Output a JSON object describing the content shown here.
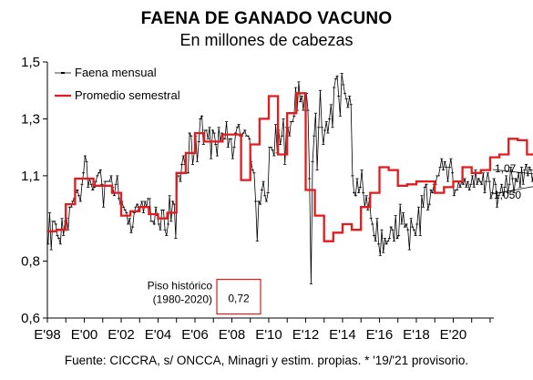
{
  "title": "FAENA DE GANADO VACUNO",
  "subtitle": "En millones de cabezas",
  "source": "Fuente: CICCRA, s/ ONCCA, Minagri y estim. propias. * '19/'21 provisorio.",
  "colors": {
    "monthly": "#000000",
    "semester": "#e41a1c",
    "axis": "#000000",
    "annotation_box": "#e41a1c"
  },
  "chart_data": {
    "type": "line",
    "title": "FAENA DE GANADO VACUNO",
    "subtitle": "En millones de cabezas",
    "xlabel": "",
    "ylabel": "",
    "xlim": [
      1998.0,
      2022.2
    ],
    "ylim": [
      0.6,
      1.5
    ],
    "y_ticks": [
      {
        "value": 0.6,
        "label": "0,6"
      },
      {
        "value": 0.8,
        "label": "0,8"
      },
      {
        "value": 1.1,
        "label": "1,1"
      },
      {
        "value": 1.3,
        "label": "1,3"
      },
      {
        "value": 1.5,
        "label": "1,5"
      }
    ],
    "x_ticks": [
      {
        "value": 1998,
        "label": "E'98"
      },
      {
        "value": 2000,
        "label": "E'00"
      },
      {
        "value": 2002,
        "label": "E'02"
      },
      {
        "value": 2004,
        "label": "E'04"
      },
      {
        "value": 2006,
        "label": "E'06"
      },
      {
        "value": 2008,
        "label": "E'08"
      },
      {
        "value": 2010,
        "label": "E'10"
      },
      {
        "value": 2012,
        "label": "E'12"
      },
      {
        "value": 2014,
        "label": "E'14"
      },
      {
        "value": 2016,
        "label": "E'16"
      },
      {
        "value": 2018,
        "label": "E'18"
      },
      {
        "value": 2020,
        "label": "E'20"
      }
    ],
    "grid": false,
    "legend": {
      "placement": "top-left",
      "entries": [
        {
          "label": "Faena mensual",
          "series": "monthly"
        },
        {
          "label": "Promedio semestral",
          "series": "semester"
        }
      ]
    },
    "series": [
      {
        "name": "Faena mensual",
        "key": "monthly",
        "start_year": 1998,
        "frequency": "monthly",
        "values": [
          0.86,
          0.97,
          0.84,
          0.94,
          0.94,
          0.93,
          0.89,
          0.88,
          0.86,
          0.95,
          0.89,
          0.94,
          0.95,
          0.91,
          0.99,
          0.99,
          1.01,
          1.02,
          1.04,
          1.05,
          1.03,
          1.01,
          1.07,
          1.11,
          1.17,
          1.15,
          1.06,
          1.09,
          1.07,
          1.05,
          1.06,
          1.08,
          1.1,
          1.11,
          1.12,
          1.07,
          0.99,
          1.08,
          1.08,
          1.08,
          1.08,
          1.1,
          1.06,
          1.03,
          1.07,
          1.1,
          1.02,
          1.0,
          1.01,
          0.99,
          0.98,
          0.97,
          0.93,
          0.95,
          0.9,
          0.92,
          0.97,
          0.99,
          1.0,
          0.98,
          0.99,
          1.01,
          0.97,
          1.01,
          0.99,
          1.02,
          1.02,
          0.94,
          0.94,
          0.93,
          0.99,
          0.96,
          0.93,
          0.91,
          0.98,
          0.98,
          0.91,
          0.89,
          0.93,
          1.03,
          0.94,
          1.01,
          1.0,
          0.88,
          1.1,
          1.1,
          1.08,
          1.14,
          1.17,
          1.14,
          1.11,
          1.11,
          1.25,
          1.24,
          1.14,
          1.18,
          1.24,
          1.15,
          1.22,
          1.3,
          1.31,
          1.21,
          1.26,
          1.26,
          1.23,
          1.27,
          1.16,
          1.26,
          1.25,
          1.21,
          1.17,
          1.27,
          1.22,
          1.25,
          1.23,
          1.23,
          1.29,
          1.2,
          1.23,
          1.23,
          1.16,
          1.2,
          1.25,
          1.27,
          1.28,
          1.24,
          1.24,
          1.25,
          1.26,
          1.24,
          1.24,
          1.23,
          1.15,
          1.12,
          1.11,
          1.01,
          0.87,
          1.01,
          1.0,
          1.05,
          1.08,
          1.03,
          1.01,
          1.04,
          1.2,
          1.2,
          1.19,
          1.17,
          1.28,
          1.18,
          1.26,
          1.21,
          1.24,
          1.3,
          1.14,
          1.27,
          1.27,
          1.24,
          1.29,
          1.29,
          1.31,
          1.41,
          1.33,
          1.43,
          1.36,
          1.38,
          1.33,
          1.39,
          1.39,
          1.33,
          1.09,
          0.72,
          1.15,
          1.24,
          1.32,
          1.12,
          1.27,
          1.4,
          1.27,
          1.21,
          1.26,
          1.29,
          1.25,
          1.3,
          1.35,
          1.27,
          1.41,
          1.44,
          1.45,
          1.38,
          1.31,
          1.46,
          1.42,
          1.39,
          1.37,
          1.34,
          1.38,
          1.35,
          1.1,
          1.04,
          1.03,
          1.09,
          1.04,
          1.06,
          1.12,
          1.04,
          0.99,
          1.03,
          0.98,
          1.02,
          0.95,
          0.93,
          0.89,
          0.87,
          0.95,
          0.86,
          0.82,
          0.91,
          0.83,
          0.88,
          0.86,
          0.87,
          0.88,
          0.92,
          0.91,
          0.87,
          0.96,
          0.88,
          0.89,
          1.0,
          0.93,
          0.97,
          0.92,
          0.93,
          0.91,
          0.84,
          0.95,
          0.92,
          0.91,
          0.89,
          0.93,
          0.99,
          0.89,
          1.03,
          0.99,
          1.06,
          1.07,
          0.98,
          1.0,
          1.05,
          1.04,
          1.07,
          1.07,
          1.1,
          1.1,
          1.13,
          1.16,
          1.12,
          1.15,
          1.13,
          1.08,
          1.13,
          1.16,
          1.11,
          1.03,
          1.05,
          1.05,
          1.08,
          1.06,
          1.08,
          1.07,
          1.09,
          1.06,
          1.08,
          1.05,
          1.07,
          1.1,
          1.06,
          1.12,
          1.07,
          1.09,
          1.08,
          1.07,
          1.11,
          1.04,
          1.08,
          1.11,
          1.08,
          1.02,
          1.04,
          1.09,
          1.07,
          0.99,
          1.03,
          1.04,
          1.07,
          1.03,
          1.06,
          1.1,
          1.04,
          1.07,
          1.13,
          1.09,
          1.04,
          1.09,
          1.08,
          1.11,
          1.06,
          1.13,
          1.07,
          1.12,
          1.14,
          1.1,
          1.13,
          1.12,
          1.08,
          1.12,
          1.15,
          1.11,
          1.16,
          1.07,
          1.1,
          1.1,
          1.12,
          1.16,
          1.17,
          1.15,
          1.18,
          1.14,
          1.12,
          1.2,
          1.16,
          1.22,
          1.17,
          1.12,
          1.2,
          1.12,
          1.25,
          1.26,
          1.23,
          1.28,
          1.18,
          1.24,
          1.27,
          1.21,
          1.2,
          1.28,
          1.18,
          1.14,
          1.16,
          1.18,
          1.18,
          1.2,
          1.15,
          1.18,
          1.21,
          1.28,
          1.23,
          1.21,
          1.26,
          1.22,
          1.3,
          1.25,
          1.25,
          1.26,
          1.25,
          1.14,
          1.09,
          1.17,
          1.08,
          1.12,
          1.21,
          1.04,
          1.16,
          1.04,
          1.02,
          1.07,
          1.07,
          1.07,
          1.1,
          1.09,
          1.06
        ]
      },
      {
        "name": "Promedio semestral",
        "key": "semester",
        "start_year": 1998,
        "frequency": "semiannual",
        "values": [
          0.905,
          0.91,
          1.0,
          1.09,
          1.09,
          1.065,
          1.065,
          1.04,
          0.96,
          0.975,
          0.99,
          0.965,
          0.95,
          0.97,
          1.11,
          1.18,
          1.25,
          1.22,
          1.22,
          1.245,
          1.245,
          1.085,
          1.21,
          1.3,
          1.38,
          1.175,
          1.32,
          1.39,
          1.05,
          0.96,
          0.87,
          0.9,
          0.93,
          0.91,
          0.99,
          1.04,
          1.13,
          1.12,
          1.065,
          1.07,
          1.08,
          1.08,
          1.04,
          1.06,
          1.08,
          1.13,
          1.11,
          1.12,
          1.165,
          1.175,
          1.23,
          1.225,
          1.175,
          1.225,
          1.245,
          1.155,
          1.235,
          1.1,
          1.1
        ]
      }
    ],
    "annotations": [
      {
        "text": "Piso histórico",
        "sub": "(1980-2020)",
        "value_label": "0,72",
        "x": 2008.25,
        "y": 0.72
      },
      {
        "label": "1,07",
        "x": 2021.8,
        "y": 1.07
      },
      {
        "label": "1,050",
        "x": 2021.8,
        "y": 1.05
      }
    ]
  }
}
